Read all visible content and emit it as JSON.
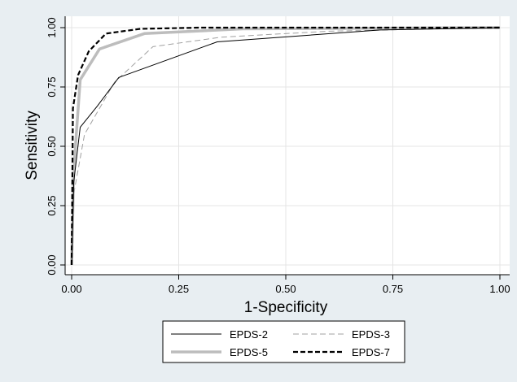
{
  "chart_data": {
    "type": "line",
    "title": "",
    "xlabel": "1-Specificity",
    "ylabel": "Sensitivity",
    "xlim": [
      0,
      1
    ],
    "ylim": [
      0,
      1
    ],
    "xticks": [
      "0.00",
      "0.25",
      "0.50",
      "0.75",
      "1.00"
    ],
    "yticks": [
      "0.00",
      "0.25",
      "0.50",
      "0.75",
      "1.00"
    ],
    "grid": true,
    "legend_position": "bottom",
    "series": [
      {
        "name": "EPDS-2",
        "color": "#000000",
        "style": "solid-thin",
        "points": [
          [
            0,
            0
          ],
          [
            0.005,
            0.35
          ],
          [
            0.02,
            0.58
          ],
          [
            0.06,
            0.67
          ],
          [
            0.11,
            0.79
          ],
          [
            0.34,
            0.94
          ],
          [
            0.72,
            0.99
          ],
          [
            1,
            1
          ]
        ]
      },
      {
        "name": "EPDS-3",
        "color": "#a0a0a0",
        "style": "dashed-thin",
        "points": [
          [
            0,
            0
          ],
          [
            0.005,
            0.3
          ],
          [
            0.03,
            0.55
          ],
          [
            0.1,
            0.77
          ],
          [
            0.19,
            0.92
          ],
          [
            0.35,
            0.96
          ],
          [
            0.6,
            0.985
          ],
          [
            1,
            1
          ]
        ]
      },
      {
        "name": "EPDS-5",
        "color": "#bdbdbd",
        "style": "solid-thick",
        "points": [
          [
            0,
            0
          ],
          [
            0.005,
            0.4
          ],
          [
            0.02,
            0.78
          ],
          [
            0.065,
            0.91
          ],
          [
            0.17,
            0.975
          ],
          [
            0.4,
            0.995
          ],
          [
            1,
            1
          ]
        ]
      },
      {
        "name": "EPDS-7",
        "color": "#000000",
        "style": "dashed-thick",
        "points": [
          [
            0,
            0
          ],
          [
            0.003,
            0.66
          ],
          [
            0.015,
            0.8
          ],
          [
            0.04,
            0.9
          ],
          [
            0.08,
            0.975
          ],
          [
            0.16,
            0.995
          ],
          [
            0.3,
            1
          ],
          [
            1,
            1
          ]
        ]
      }
    ]
  }
}
